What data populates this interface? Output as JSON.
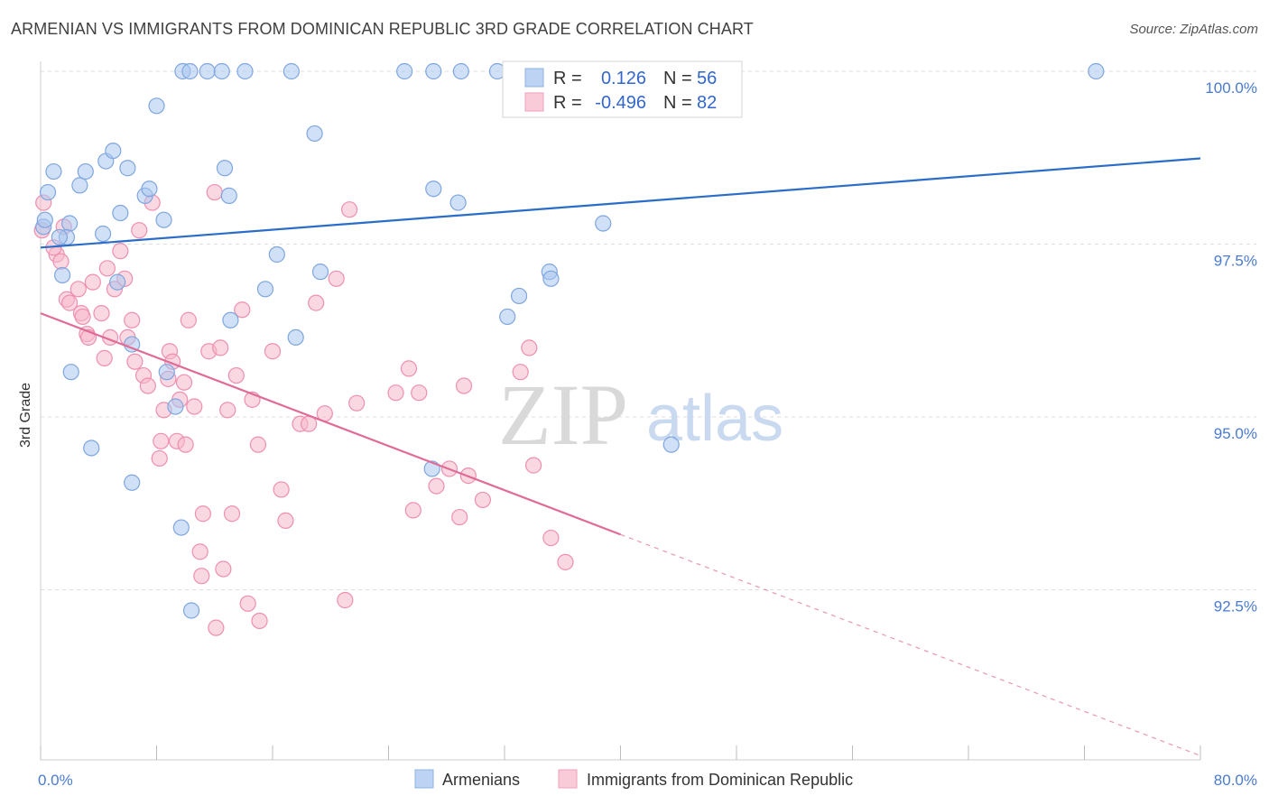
{
  "title": "ARMENIAN VS IMMIGRANTS FROM DOMINICAN REPUBLIC 3RD GRADE CORRELATION CHART",
  "source": "Source: ZipAtlas.com",
  "watermark": {
    "zip": "ZIP",
    "atlas": "atlas"
  },
  "legend_box": {
    "rows": [
      {
        "r_label": "R =",
        "r_value": "0.126",
        "n_label": "N =",
        "n_value": "56"
      },
      {
        "r_label": "R =",
        "r_value": "-0.496",
        "n_label": "N =",
        "n_value": "82"
      }
    ]
  },
  "bottom_legend": [
    "Armenians",
    "Immigrants from Dominican Republic"
  ],
  "chart_data": {
    "type": "scatter",
    "title": "ARMENIAN VS IMMIGRANTS FROM DOMINICAN REPUBLIC 3RD GRADE CORRELATION CHART",
    "xlabel": "",
    "ylabel": "3rd Grade",
    "xlim": [
      0,
      80
    ],
    "ylim": [
      90.0,
      100.5
    ],
    "x_tick_labels": [
      "0.0%",
      "80.0%"
    ],
    "y_ticks": [
      100.0,
      97.5,
      95.0,
      92.5
    ],
    "y_tick_labels": [
      "100.0%",
      "97.5%",
      "95.0%",
      "92.5%"
    ],
    "grid": true,
    "legend_position": "top-center",
    "colors": {
      "armenians": "#a9c6ef",
      "armenians_line": "#2a6dc9",
      "dominican": "#f6b8cb",
      "dominican_line": "#e06b97",
      "tick_text": "#4a7bd0"
    },
    "series": [
      {
        "name": "Armenians",
        "r": 0.126,
        "n": 56,
        "trend": {
          "x0": 0,
          "y0": 97.45,
          "x1": 80,
          "y1": 98.74
        },
        "points": [
          [
            0.2,
            97.75
          ],
          [
            0.5,
            98.25
          ],
          [
            0.9,
            98.55
          ],
          [
            2.7,
            98.35
          ],
          [
            3.1,
            98.55
          ],
          [
            4.5,
            98.7
          ],
          [
            5.0,
            98.85
          ],
          [
            6.0,
            98.6
          ],
          [
            7.2,
            98.2
          ],
          [
            7.5,
            98.3
          ],
          [
            8.0,
            99.5
          ],
          [
            9.8,
            100.0
          ],
          [
            10.3,
            100.0
          ],
          [
            11.5,
            100.0
          ],
          [
            12.5,
            100.0
          ],
          [
            14.1,
            100.0
          ],
          [
            17.3,
            100.0
          ],
          [
            25.1,
            100.0
          ],
          [
            27.1,
            100.0
          ],
          [
            29.0,
            100.0
          ],
          [
            72.8,
            100.0
          ],
          [
            18.9,
            99.1
          ],
          [
            12.7,
            98.6
          ],
          [
            13.0,
            98.2
          ],
          [
            27.1,
            98.3
          ],
          [
            28.8,
            98.1
          ],
          [
            5.5,
            97.95
          ],
          [
            8.5,
            97.85
          ],
          [
            2.0,
            97.8
          ],
          [
            4.3,
            97.65
          ],
          [
            1.8,
            97.6
          ],
          [
            1.3,
            97.6
          ],
          [
            1.5,
            97.05
          ],
          [
            5.3,
            96.95
          ],
          [
            16.3,
            97.35
          ],
          [
            15.5,
            96.85
          ],
          [
            19.3,
            97.1
          ],
          [
            35.1,
            97.1
          ],
          [
            35.2,
            97.0
          ],
          [
            33.0,
            96.75
          ],
          [
            32.2,
            96.45
          ],
          [
            13.1,
            96.4
          ],
          [
            17.6,
            96.15
          ],
          [
            6.3,
            96.05
          ],
          [
            8.7,
            95.65
          ],
          [
            2.1,
            95.65
          ],
          [
            9.3,
            95.15
          ],
          [
            3.5,
            94.55
          ],
          [
            6.3,
            94.05
          ],
          [
            27.0,
            94.25
          ],
          [
            43.5,
            94.6
          ],
          [
            9.7,
            93.4
          ],
          [
            10.4,
            92.2
          ],
          [
            38.8,
            97.8
          ],
          [
            31.5,
            100.0
          ],
          [
            0.3,
            97.85
          ]
        ]
      },
      {
        "name": "Immigrants from Dominican Republic",
        "r": -0.496,
        "n": 82,
        "trend": {
          "x0": 0,
          "y0": 96.5,
          "x1": 40,
          "y1": 93.3,
          "dashed_to": {
            "x": 80,
            "y": 90.1
          }
        },
        "points": [
          [
            0.1,
            97.7
          ],
          [
            0.2,
            98.1
          ],
          [
            1.1,
            97.35
          ],
          [
            1.4,
            97.25
          ],
          [
            1.6,
            97.75
          ],
          [
            1.8,
            96.7
          ],
          [
            2.0,
            96.65
          ],
          [
            2.6,
            96.85
          ],
          [
            2.8,
            96.5
          ],
          [
            3.2,
            96.2
          ],
          [
            3.6,
            96.95
          ],
          [
            3.3,
            96.15
          ],
          [
            4.2,
            96.5
          ],
          [
            4.4,
            95.85
          ],
          [
            4.6,
            97.15
          ],
          [
            4.8,
            96.15
          ],
          [
            5.1,
            96.85
          ],
          [
            5.8,
            97.0
          ],
          [
            5.5,
            97.4
          ],
          [
            6.3,
            96.4
          ],
          [
            6.5,
            95.8
          ],
          [
            6.8,
            97.7
          ],
          [
            7.1,
            95.6
          ],
          [
            7.4,
            95.45
          ],
          [
            7.7,
            98.1
          ],
          [
            8.2,
            94.4
          ],
          [
            8.3,
            94.65
          ],
          [
            8.5,
            95.1
          ],
          [
            8.8,
            95.55
          ],
          [
            8.9,
            95.95
          ],
          [
            9.1,
            95.8
          ],
          [
            9.4,
            94.65
          ],
          [
            9.6,
            95.25
          ],
          [
            10.0,
            94.6
          ],
          [
            10.2,
            96.4
          ],
          [
            10.6,
            95.15
          ],
          [
            11.0,
            93.05
          ],
          [
            11.2,
            93.6
          ],
          [
            11.6,
            95.95
          ],
          [
            12.0,
            98.25
          ],
          [
            12.1,
            91.95
          ],
          [
            12.4,
            96.0
          ],
          [
            12.6,
            92.8
          ],
          [
            12.9,
            95.1
          ],
          [
            13.2,
            93.6
          ],
          [
            13.5,
            95.6
          ],
          [
            13.9,
            96.55
          ],
          [
            14.3,
            92.3
          ],
          [
            14.6,
            95.25
          ],
          [
            15.0,
            94.6
          ],
          [
            15.1,
            92.05
          ],
          [
            16.0,
            95.95
          ],
          [
            16.6,
            93.95
          ],
          [
            16.9,
            93.5
          ],
          [
            17.9,
            94.9
          ],
          [
            18.5,
            94.9
          ],
          [
            19.0,
            96.65
          ],
          [
            19.6,
            95.05
          ],
          [
            20.4,
            97.0
          ],
          [
            21.0,
            92.35
          ],
          [
            21.3,
            98.0
          ],
          [
            21.8,
            95.2
          ],
          [
            24.5,
            95.35
          ],
          [
            25.4,
            95.7
          ],
          [
            25.7,
            93.65
          ],
          [
            26.1,
            95.35
          ],
          [
            27.3,
            94.0
          ],
          [
            28.2,
            94.25
          ],
          [
            28.9,
            93.55
          ],
          [
            29.2,
            95.45
          ],
          [
            29.5,
            94.15
          ],
          [
            30.5,
            93.8
          ],
          [
            33.1,
            95.65
          ],
          [
            33.7,
            96.0
          ],
          [
            34.0,
            94.3
          ],
          [
            35.2,
            93.25
          ],
          [
            36.2,
            92.9
          ],
          [
            6.0,
            96.15
          ],
          [
            9.9,
            95.5
          ],
          [
            11.1,
            92.7
          ],
          [
            2.9,
            96.45
          ],
          [
            0.9,
            97.45
          ]
        ]
      }
    ]
  }
}
